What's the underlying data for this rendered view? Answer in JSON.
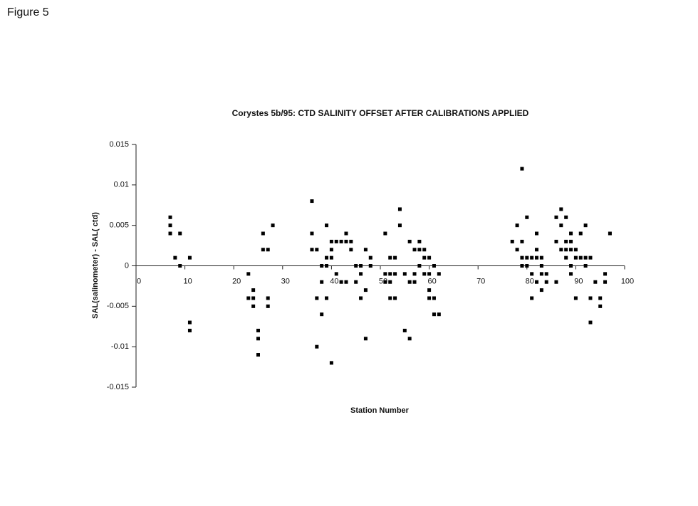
{
  "figure_label": "Figure 5",
  "chart_data": {
    "type": "scatter",
    "title": "Corystes 5b/95: CTD SALINITY OFFSET AFTER CALIBRATIONS APPLIED",
    "xlabel": "Station Number",
    "ylabel": "SAL(salinometer) - SAL( ctd)",
    "xlim": [
      0,
      100
    ],
    "xticks": [
      0,
      10,
      20,
      30,
      40,
      50,
      60,
      70,
      80,
      90,
      100
    ],
    "ylim": [
      -0.015,
      0.015
    ],
    "yticks": [
      0.015,
      0.01,
      0.005,
      0,
      -0.005,
      -0.01,
      -0.015
    ],
    "grid": false,
    "series": [
      {
        "name": null,
        "color": "#000000",
        "x": [
          7,
          7,
          7,
          8,
          9,
          9,
          11,
          11,
          11,
          23,
          23,
          24,
          24,
          24,
          25,
          25,
          25,
          26,
          26,
          27,
          27,
          27,
          28,
          36,
          36,
          36,
          37,
          37,
          37,
          38,
          38,
          38,
          39,
          39,
          39,
          39,
          40,
          40,
          40,
          40,
          41,
          41,
          42,
          42,
          43,
          43,
          43,
          44,
          44,
          45,
          45,
          46,
          46,
          46,
          47,
          47,
          47,
          48,
          48,
          51,
          51,
          51,
          52,
          52,
          52,
          52,
          53,
          53,
          53,
          54,
          54,
          55,
          55,
          56,
          56,
          56,
          57,
          57,
          57,
          58,
          58,
          58,
          59,
          59,
          59,
          60,
          60,
          60,
          60,
          61,
          61,
          61,
          62,
          62,
          77,
          78,
          78,
          79,
          79,
          79,
          79,
          80,
          80,
          80,
          81,
          81,
          81,
          82,
          82,
          82,
          82,
          83,
          83,
          83,
          83,
          84,
          84,
          86,
          86,
          86,
          87,
          87,
          87,
          88,
          88,
          88,
          88,
          89,
          89,
          89,
          89,
          89,
          90,
          90,
          90,
          91,
          91,
          92,
          92,
          92,
          93,
          93,
          93,
          94,
          95,
          95,
          96,
          96,
          97
        ],
        "y": [
          0.006,
          0.005,
          0.004,
          0.001,
          0.004,
          0,
          0.001,
          -0.007,
          -0.008,
          -0.001,
          -0.004,
          -0.003,
          -0.004,
          -0.005,
          -0.008,
          -0.009,
          -0.011,
          0.004,
          0.002,
          0.002,
          -0.004,
          -0.005,
          0.005,
          0.008,
          0.004,
          0.002,
          0.002,
          -0.004,
          -0.01,
          0,
          -0.002,
          -0.006,
          0.005,
          0.001,
          0,
          -0.004,
          0.003,
          0.002,
          0.001,
          -0.012,
          0.003,
          -0.001,
          0.003,
          -0.002,
          0.004,
          0.003,
          -0.002,
          0.003,
          0.002,
          0,
          -0.002,
          0,
          -0.001,
          -0.004,
          0.002,
          -0.003,
          -0.009,
          0.001,
          0,
          0.004,
          -0.001,
          -0.002,
          0.001,
          -0.001,
          -0.002,
          -0.004,
          0.001,
          -0.001,
          -0.004,
          0.007,
          0.005,
          -0.001,
          -0.008,
          0.003,
          -0.002,
          -0.009,
          0.002,
          -0.001,
          -0.002,
          0.003,
          0.002,
          0,
          0.002,
          0.001,
          -0.001,
          0.001,
          -0.001,
          -0.003,
          -0.004,
          0,
          -0.004,
          -0.006,
          -0.001,
          -0.006,
          0.003,
          0.005,
          0.002,
          0.003,
          0.001,
          0,
          0.012,
          0.006,
          0.001,
          0,
          0.001,
          -0.001,
          -0.004,
          0.004,
          0.002,
          0.001,
          -0.002,
          0.001,
          0,
          -0.001,
          -0.003,
          -0.001,
          -0.002,
          0.006,
          0.003,
          -0.002,
          0.007,
          0.005,
          0.002,
          0.006,
          0.002,
          0.001,
          0.003,
          0.004,
          0.003,
          0.002,
          0,
          -0.001,
          0.002,
          0.001,
          -0.004,
          0.004,
          0.001,
          0.005,
          0.001,
          0,
          0.001,
          -0.004,
          -0.007,
          -0.002,
          -0.004,
          -0.005,
          -0.001,
          -0.002,
          0.004
        ]
      }
    ]
  }
}
